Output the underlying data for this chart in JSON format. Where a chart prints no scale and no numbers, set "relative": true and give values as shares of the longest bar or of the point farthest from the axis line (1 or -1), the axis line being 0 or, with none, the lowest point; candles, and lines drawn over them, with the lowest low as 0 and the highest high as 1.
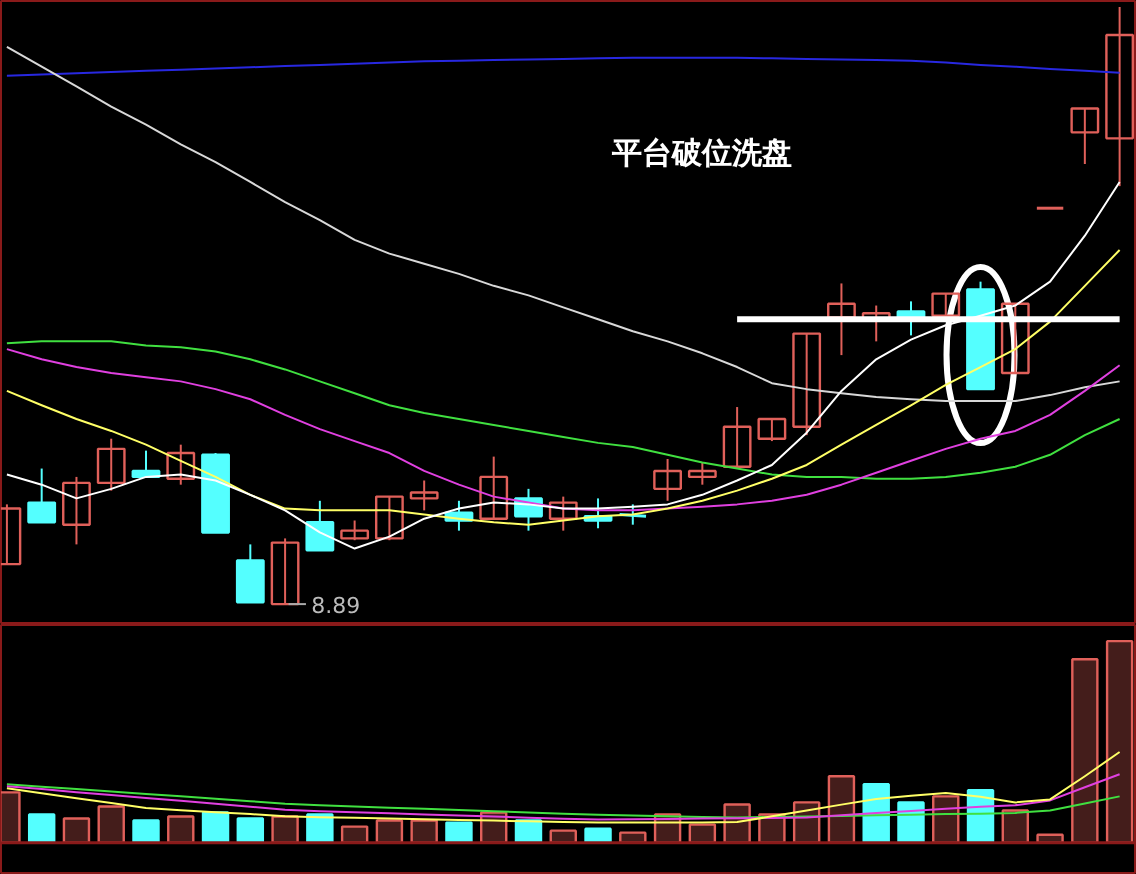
{
  "chart_data": [
    {
      "type": "candlestick",
      "relative": true,
      "grid": false,
      "categories": [
        null,
        null,
        null,
        null,
        null,
        null,
        null,
        null,
        null,
        null,
        null,
        null,
        null,
        null,
        null,
        null,
        null,
        null,
        null,
        null,
        null,
        null,
        null,
        null,
        null,
        null,
        null,
        null,
        null,
        null,
        null,
        null,
        null
      ],
      "ohlc": [
        [
          0.067,
          0.167,
          0.067,
          0.16
        ],
        [
          0.17,
          0.227,
          0.137,
          0.137
        ],
        [
          0.133,
          0.213,
          0.1,
          0.203
        ],
        [
          0.203,
          0.277,
          0.19,
          0.26
        ],
        [
          0.223,
          0.257,
          0.213,
          0.213
        ],
        [
          0.21,
          0.267,
          0.2,
          0.253
        ],
        [
          0.25,
          0.253,
          0.12,
          0.12
        ],
        [
          0.073,
          0.1,
          0.003,
          0.003
        ],
        [
          0,
          0.11,
          0,
          0.103
        ],
        [
          0.137,
          0.173,
          0.09,
          0.09
        ],
        [
          0.11,
          0.14,
          0.107,
          0.123
        ],
        [
          0.11,
          0.18,
          0.107,
          0.18
        ],
        [
          0.177,
          0.207,
          0.157,
          0.187
        ],
        [
          0.153,
          0.173,
          0.123,
          0.14
        ],
        [
          0.143,
          0.247,
          0.143,
          0.213
        ],
        [
          0.177,
          0.193,
          0.123,
          0.147
        ],
        [
          0.143,
          0.18,
          0.123,
          0.17
        ],
        [
          0.147,
          0.177,
          0.127,
          0.14
        ],
        [
          0.15,
          0.167,
          0.133,
          0.147
        ],
        [
          0.193,
          0.243,
          0.173,
          0.223
        ],
        [
          0.213,
          0.237,
          0.2,
          0.223
        ],
        [
          0.23,
          0.33,
          0.23,
          0.297
        ],
        [
          0.277,
          0.31,
          0.273,
          0.31
        ],
        [
          0.297,
          0.453,
          0.283,
          0.453
        ],
        [
          0.48,
          0.537,
          0.417,
          0.503
        ],
        [
          0.477,
          0.5,
          0.44,
          0.487
        ],
        [
          0.49,
          0.507,
          0.45,
          0.477
        ],
        [
          0.483,
          0.52,
          0.483,
          0.52
        ],
        [
          0.527,
          0.54,
          0.36,
          0.36
        ],
        [
          0.387,
          0.503,
          0.387,
          0.503
        ],
        [
          0.663,
          0.663,
          0.663,
          0.663
        ],
        [
          0.79,
          0.83,
          0.737,
          0.83
        ],
        [
          0.78,
          1,
          0.7,
          0.953
        ]
      ],
      "colors": [
        "#e0605a",
        "#54ffff",
        "#e0605a",
        "#e0605a",
        "#54ffff",
        "#e0605a",
        "#54ffff",
        "#54ffff",
        "#e0605a",
        "#54ffff",
        "#e0605a",
        "#e0605a",
        "#e0605a",
        "#54ffff",
        "#e0605a",
        "#54ffff",
        "#e0605a",
        "#54ffff",
        "#54ffff",
        "#e0605a",
        "#e0605a",
        "#e0605a",
        "#e0605a",
        "#e0605a",
        "#e0605a",
        "#e0605a",
        "#54ffff",
        "#e0605a",
        "#54ffff",
        "#e0605a",
        "#e0605a",
        "#e0605a",
        "#e0605a"
      ],
      "series": [
        {
          "type": "line",
          "color": "#2828e0",
          "values": [
            0.885,
            0.887,
            0.889,
            0.891,
            0.893,
            0.895,
            0.897,
            0.899,
            0.901,
            0.903,
            0.905,
            0.907,
            0.909,
            0.91,
            0.911,
            0.912,
            0.913,
            0.914,
            0.915,
            0.915,
            0.915,
            0.915,
            0.914,
            0.913,
            0.912,
            0.911,
            0.91,
            0.907,
            0.903,
            0.9,
            0.896,
            0.893,
            0.89
          ]
        },
        {
          "type": "line",
          "color": "#d8d8d8",
          "values": [
            0.933,
            0.9,
            0.867,
            0.833,
            0.803,
            0.77,
            0.74,
            0.707,
            0.673,
            0.643,
            0.61,
            0.587,
            0.57,
            0.553,
            0.533,
            0.517,
            0.497,
            0.477,
            0.457,
            0.44,
            0.42,
            0.397,
            0.37,
            0.36,
            0.353,
            0.347,
            0.343,
            0.34,
            0.34,
            0.34,
            0.35,
            0.363,
            0.373
          ]
        },
        {
          "type": "line",
          "color": "#40e040",
          "values": [
            0.437,
            0.44,
            0.44,
            0.44,
            0.433,
            0.43,
            0.423,
            0.41,
            0.393,
            0.373,
            0.353,
            0.333,
            0.32,
            0.31,
            0.3,
            0.29,
            0.28,
            0.27,
            0.263,
            0.25,
            0.237,
            0.227,
            0.217,
            0.213,
            0.213,
            0.21,
            0.21,
            0.213,
            0.22,
            0.23,
            0.25,
            0.283,
            0.31
          ]
        },
        {
          "type": "line",
          "color": "#e040e0",
          "values": [
            0.427,
            0.41,
            0.397,
            0.387,
            0.38,
            0.373,
            0.36,
            0.343,
            0.317,
            0.293,
            0.273,
            0.253,
            0.223,
            0.2,
            0.18,
            0.17,
            0.16,
            0.157,
            0.157,
            0.16,
            0.163,
            0.167,
            0.173,
            0.183,
            0.2,
            0.22,
            0.24,
            0.26,
            0.277,
            0.29,
            0.317,
            0.357,
            0.4
          ]
        },
        {
          "type": "line",
          "color": "#ffff66",
          "values": [
            0.357,
            0.333,
            0.31,
            0.29,
            0.267,
            0.24,
            0.213,
            0.183,
            0.16,
            0.157,
            0.157,
            0.157,
            0.15,
            0.143,
            0.137,
            0.133,
            0.14,
            0.147,
            0.15,
            0.16,
            0.173,
            0.19,
            0.21,
            0.233,
            0.267,
            0.3,
            0.333,
            0.367,
            0.397,
            0.427,
            0.473,
            0.533,
            0.593
          ]
        },
        {
          "type": "line",
          "color": "#ffffff",
          "values": [
            0.217,
            0.2,
            0.177,
            0.193,
            0.213,
            0.217,
            0.207,
            0.183,
            0.157,
            0.12,
            0.093,
            0.113,
            0.143,
            0.16,
            0.17,
            0.167,
            0.16,
            0.16,
            0.163,
            0.167,
            0.183,
            0.207,
            0.233,
            0.287,
            0.357,
            0.41,
            0.443,
            0.467,
            0.483,
            0.5,
            0.54,
            0.617,
            0.707
          ]
        },
        {
          "type": "line",
          "color": "#ffffff",
          "values": [
            null,
            null,
            null,
            null,
            null,
            null,
            null,
            null,
            null,
            null,
            null,
            null,
            null,
            null,
            null,
            null,
            null,
            null,
            null,
            null,
            null,
            0.477,
            0.477,
            0.477,
            0.477,
            0.477,
            0.477,
            0.477,
            0.477,
            0.477,
            0.477,
            0.477,
            0.477
          ]
        }
      ],
      "annotations": [
        "平台破位洗盘",
        "8.89"
      ]
    },
    {
      "type": "bar",
      "relative": true,
      "grid": false,
      "categories": [
        null,
        null,
        null,
        null,
        null,
        null,
        null,
        null,
        null,
        null,
        null,
        null,
        null,
        null,
        null,
        null,
        null,
        null,
        null,
        null,
        null,
        null,
        null,
        null,
        null,
        null,
        null,
        null,
        null,
        null,
        null,
        null,
        null
      ],
      "values": [
        0.25,
        0.14,
        0.12,
        0.18,
        0.11,
        0.13,
        0.15,
        0.12,
        0.13,
        0.14,
        0.08,
        0.11,
        0.11,
        0.1,
        0.15,
        0.11,
        0.06,
        0.07,
        0.05,
        0.14,
        0.09,
        0.19,
        0.14,
        0.2,
        0.33,
        0.29,
        0.2,
        0.23,
        0.26,
        0.16,
        0.04,
        0.91,
        1
      ],
      "colors": [
        "#e0605a",
        "#54ffff",
        "#e0605a",
        "#e0605a",
        "#54ffff",
        "#e0605a",
        "#54ffff",
        "#54ffff",
        "#e0605a",
        "#54ffff",
        "#e0605a",
        "#e0605a",
        "#e0605a",
        "#54ffff",
        "#e0605a",
        "#54ffff",
        "#e0605a",
        "#54ffff",
        "#e0605a",
        "#e0605a",
        "#e0605a",
        "#e0605a",
        "#e0605a",
        "#e0605a",
        "#e0605a",
        "#54ffff",
        "#54ffff",
        "#e0605a",
        "#54ffff",
        "#e0605a",
        "#e0605a",
        "#e0605a",
        "#e0605a"
      ],
      "series": [
        {
          "type": "line",
          "color": "#40e040",
          "values": [
            0.29,
            0.278,
            0.266,
            0.254,
            0.242,
            0.23,
            0.218,
            0.206,
            0.194,
            0.186,
            0.18,
            0.174,
            0.168,
            0.162,
            0.156,
            0.15,
            0.144,
            0.139,
            0.135,
            0.132,
            0.128,
            0.125,
            0.128,
            0.13,
            0.133,
            0.136,
            0.139,
            0.142,
            0.144,
            0.148,
            0.16,
            0.195,
            0.23
          ]
        },
        {
          "type": "line",
          "color": "#e040e0",
          "values": [
            0.28,
            0.266,
            0.251,
            0.237,
            0.222,
            0.208,
            0.193,
            0.179,
            0.164,
            0.156,
            0.151,
            0.146,
            0.14,
            0.135,
            0.13,
            0.124,
            0.119,
            0.115,
            0.117,
            0.118,
            0.12,
            0.122,
            0.123,
            0.125,
            0.136,
            0.147,
            0.157,
            0.168,
            0.178,
            0.186,
            0.21,
            0.275,
            0.34
          ]
        },
        {
          "type": "line",
          "color": "#ffff66",
          "values": [
            0.27,
            0.246,
            0.221,
            0.197,
            0.172,
            0.161,
            0.151,
            0.142,
            0.132,
            0.127,
            0.124,
            0.12,
            0.117,
            0.113,
            0.11,
            0.106,
            0.103,
            0.1,
            0.1,
            0.1,
            0.1,
            0.103,
            0.131,
            0.16,
            0.189,
            0.217,
            0.233,
            0.247,
            0.228,
            0.2,
            0.215,
            0.33,
            0.45
          ]
        }
      ]
    }
  ]
}
